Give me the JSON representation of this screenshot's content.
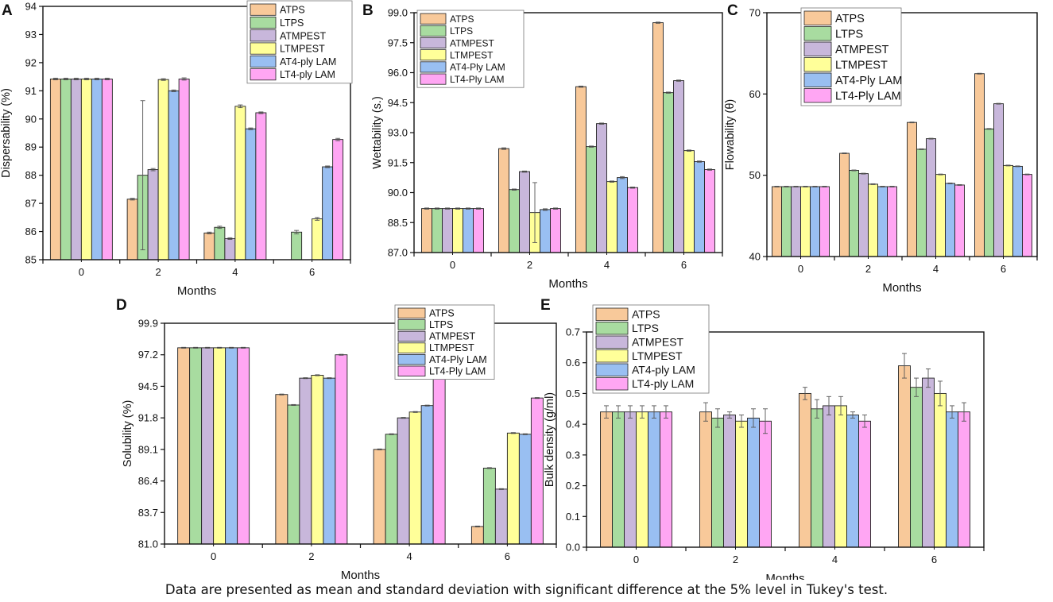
{
  "caption": "Data are presented as mean and standard deviation with significant difference at the 5% level in Tukey's test.",
  "colors": [
    "#f8c99a",
    "#a8dca0",
    "#c8b7db",
    "#ffff99",
    "#99bff2",
    "#ffa6f3"
  ],
  "chart_data": [
    {
      "panel": "A",
      "type": "bar",
      "xlabel": "Months",
      "ylabel": "Dispersability (%)",
      "categories": [
        "0",
        "2",
        "4",
        "6"
      ],
      "ylim": [
        85,
        94
      ],
      "yticks": [
        "85",
        "86",
        "87",
        "88",
        "89",
        "90",
        "91",
        "92",
        "93",
        "94"
      ],
      "legend_position": "top-right",
      "series": [
        {
          "name": "ATPS",
          "values": [
            91.42,
            87.15,
            85.95,
            null
          ],
          "errors": [
            0.03,
            0.03,
            0.03,
            null
          ]
        },
        {
          "name": "LTPS",
          "values": [
            91.42,
            88.0,
            86.15,
            85.98
          ],
          "errors": [
            0.03,
            2.65,
            0.04,
            0.06
          ]
        },
        {
          "name": "ATMPEST",
          "values": [
            91.42,
            88.2,
            85.75,
            null
          ],
          "errors": [
            0.03,
            0.04,
            0.03,
            null
          ]
        },
        {
          "name": "LTMPEST",
          "values": [
            91.42,
            91.4,
            90.45,
            86.45
          ],
          "errors": [
            0.03,
            0.03,
            0.05,
            0.05
          ]
        },
        {
          "name": "AT4-ply LAM",
          "values": [
            91.42,
            91.0,
            89.65,
            88.3
          ],
          "errors": [
            0.03,
            0.03,
            0.03,
            0.03
          ]
        },
        {
          "name": "LT4-ply LAM",
          "values": [
            91.42,
            91.42,
            90.22,
            89.27
          ],
          "errors": [
            0.03,
            0.04,
            0.03,
            0.04
          ]
        }
      ]
    },
    {
      "panel": "B",
      "type": "bar",
      "xlabel": "Months",
      "ylabel": "Wettability (s.)",
      "categories": [
        "0",
        "2",
        "4",
        "6"
      ],
      "ylim": [
        87.0,
        99.0
      ],
      "yticks": [
        "87.0",
        "88.5",
        "90.0",
        "91.5",
        "93.0",
        "94.5",
        "96.0",
        "97.5",
        "99.0"
      ],
      "legend_position": "top-right",
      "series": [
        {
          "name": "ATPS",
          "values": [
            89.2,
            92.2,
            95.3,
            98.5
          ],
          "errors": [
            0.03,
            0.04,
            0.03,
            0.03
          ]
        },
        {
          "name": "LTPS",
          "values": [
            89.2,
            90.15,
            92.3,
            95.0
          ],
          "errors": [
            0.03,
            0.03,
            0.03,
            0.03
          ]
        },
        {
          "name": "ATMPEST",
          "values": [
            89.2,
            91.05,
            93.45,
            95.6
          ],
          "errors": [
            0.03,
            0.03,
            0.03,
            0.03
          ]
        },
        {
          "name": "LTMPEST",
          "values": [
            89.2,
            89.0,
            90.55,
            92.1
          ],
          "errors": [
            0.03,
            1.5,
            0.03,
            0.03
          ]
        },
        {
          "name": "AT4-Ply LAM",
          "values": [
            89.2,
            89.15,
            90.75,
            91.55
          ],
          "errors": [
            0.03,
            0.04,
            0.05,
            0.03
          ]
        },
        {
          "name": "LT4-Ply LAM",
          "values": [
            89.2,
            89.2,
            90.25,
            91.15
          ],
          "errors": [
            0.03,
            0.03,
            0.03,
            0.03
          ]
        }
      ]
    },
    {
      "panel": "C",
      "type": "bar",
      "xlabel": "Months",
      "ylabel": "Flowability (θ)",
      "categories": [
        "0",
        "2",
        "4",
        "6"
      ],
      "ylim": [
        40,
        70
      ],
      "yticks": [
        "40",
        "50",
        "60",
        "70"
      ],
      "legend_position": "top-right",
      "series": [
        {
          "name": "ATPS",
          "values": [
            48.6,
            52.7,
            56.5,
            62.5
          ],
          "errors": [
            0.05,
            0.05,
            0.05,
            0.05
          ]
        },
        {
          "name": "LTPS",
          "values": [
            48.6,
            50.6,
            53.2,
            55.7
          ],
          "errors": [
            0.05,
            0.05,
            0.05,
            0.05
          ]
        },
        {
          "name": "ATMPEST",
          "values": [
            48.6,
            50.2,
            54.5,
            58.8
          ],
          "errors": [
            0.05,
            0.05,
            0.05,
            0.05
          ]
        },
        {
          "name": "LTMPEST",
          "values": [
            48.6,
            48.9,
            50.1,
            51.2
          ],
          "errors": [
            0.05,
            0.05,
            0.05,
            0.05
          ]
        },
        {
          "name": "AT4-Ply LAM",
          "values": [
            48.6,
            48.6,
            49.0,
            51.1
          ],
          "errors": [
            0.05,
            0.05,
            0.05,
            0.05
          ]
        },
        {
          "name": "LT4-Ply LAM",
          "values": [
            48.6,
            48.6,
            48.8,
            50.1
          ],
          "errors": [
            0.05,
            0.05,
            0.05,
            0.05
          ]
        }
      ]
    },
    {
      "panel": "D",
      "type": "bar",
      "xlabel": "Months",
      "ylabel": "Solubility (%)",
      "categories": [
        "0",
        "2",
        "4",
        "6"
      ],
      "ylim": [
        81.0,
        99.9
      ],
      "yticks": [
        "81.0",
        "83.7",
        "86.4",
        "89.1",
        "91.8",
        "94.5",
        "97.2",
        "99.9"
      ],
      "legend_position": "top-right",
      "series": [
        {
          "name": "ATPS",
          "values": [
            97.8,
            93.8,
            89.1,
            82.5
          ],
          "errors": [
            0.04,
            0.04,
            0.04,
            0.04
          ]
        },
        {
          "name": "LTPS",
          "values": [
            97.8,
            92.9,
            90.4,
            87.5
          ],
          "errors": [
            0.04,
            0.04,
            0.04,
            0.04
          ]
        },
        {
          "name": "ATMPEST",
          "values": [
            97.8,
            95.2,
            91.8,
            85.7
          ],
          "errors": [
            0.04,
            0.04,
            0.04,
            0.04
          ]
        },
        {
          "name": "LTMPEST",
          "values": [
            97.8,
            95.45,
            92.3,
            90.5
          ],
          "errors": [
            0.04,
            0.04,
            0.04,
            0.04
          ]
        },
        {
          "name": "AT4-Ply LAM",
          "values": [
            97.8,
            95.2,
            92.85,
            90.4
          ],
          "errors": [
            0.04,
            0.04,
            0.04,
            0.04
          ]
        },
        {
          "name": "LT4-Ply LAM",
          "values": [
            97.8,
            97.2,
            95.2,
            93.5
          ],
          "errors": [
            0.04,
            0.04,
            0.04,
            0.04
          ]
        }
      ]
    },
    {
      "panel": "E",
      "type": "bar",
      "xlabel": "Months",
      "ylabel": "Bulk density (g/ml)",
      "categories": [
        "0",
        "2",
        "4",
        "6"
      ],
      "ylim": [
        0.0,
        0.7
      ],
      "yticks": [
        "0.0",
        "0.1",
        "0.2",
        "0.3",
        "0.4",
        "0.5",
        "0.6",
        "0.7"
      ],
      "legend_position": "top-left",
      "series": [
        {
          "name": "ATPS",
          "values": [
            0.44,
            0.44,
            0.5,
            0.59
          ],
          "errors": [
            0.02,
            0.03,
            0.02,
            0.04
          ]
        },
        {
          "name": "LTPS",
          "values": [
            0.44,
            0.42,
            0.45,
            0.52
          ],
          "errors": [
            0.02,
            0.03,
            0.03,
            0.03
          ]
        },
        {
          "name": "ATMPEST",
          "values": [
            0.44,
            0.43,
            0.46,
            0.55
          ],
          "errors": [
            0.02,
            0.01,
            0.03,
            0.03
          ]
        },
        {
          "name": "LTMPEST",
          "values": [
            0.44,
            0.41,
            0.46,
            0.5
          ],
          "errors": [
            0.02,
            0.02,
            0.03,
            0.04
          ]
        },
        {
          "name": "AT4-ply LAM",
          "values": [
            0.44,
            0.42,
            0.43,
            0.44
          ],
          "errors": [
            0.02,
            0.03,
            0.01,
            0.02
          ]
        },
        {
          "name": "LT4-ply LAM",
          "values": [
            0.44,
            0.41,
            0.41,
            0.44
          ],
          "errors": [
            0.02,
            0.04,
            0.02,
            0.03
          ]
        }
      ]
    }
  ]
}
